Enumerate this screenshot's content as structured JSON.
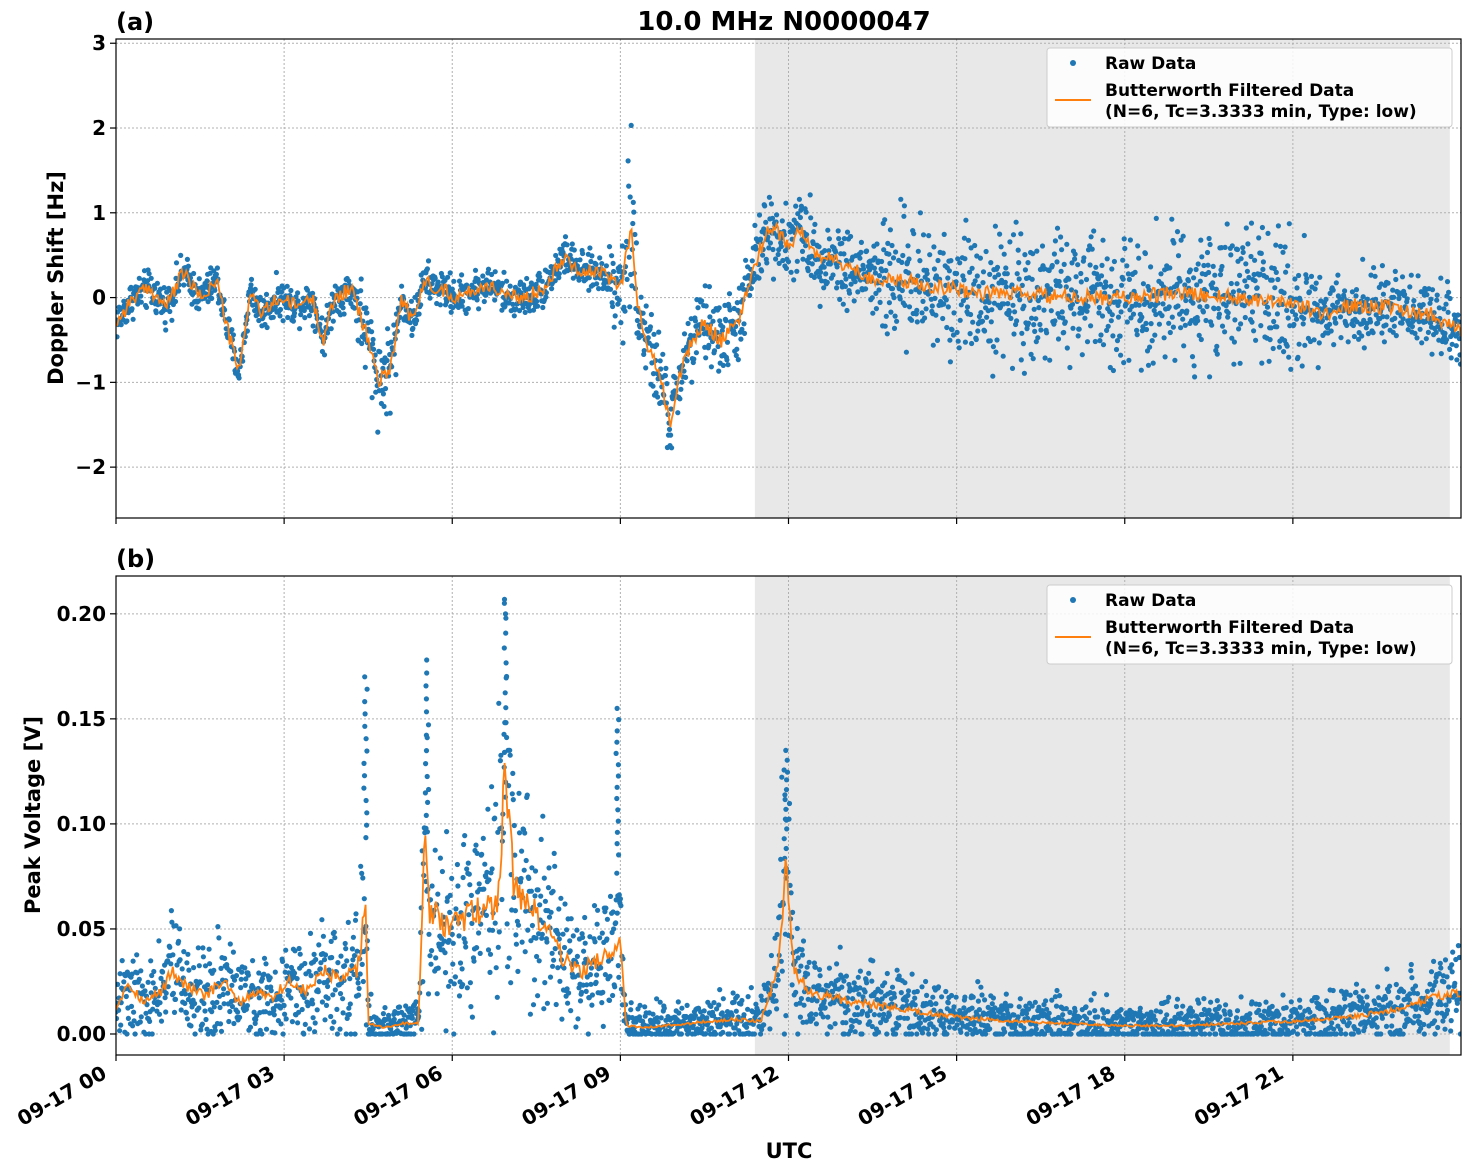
{
  "figure": {
    "title": "10.0 MHz N0000047",
    "xlabel": "UTC",
    "shaded_start_hour": 11.4,
    "shaded_end_hour": 23.8,
    "colors": {
      "raw": "#1f77b4",
      "filtered": "#ff7f0e",
      "shade": "#e8e8e8",
      "grid": "#b0b0b0"
    }
  },
  "chart_data": [
    {
      "type": "scatter",
      "panel_label": "(a)",
      "ylabel": "Doppler Shift [Hz]",
      "xlim": [
        "09-17 00",
        "09-17 24"
      ],
      "ylim": [
        -2.6,
        3.05
      ],
      "x_ticks": [
        "09-17 00",
        "09-17 03",
        "09-17 06",
        "09-17 09",
        "09-17 12",
        "09-17 15",
        "09-17 18",
        "09-17 21"
      ],
      "y_ticks": [
        {
          "value": -2,
          "label": "−2"
        },
        {
          "value": -1,
          "label": "−1"
        },
        {
          "value": 0,
          "label": "0"
        },
        {
          "value": 1,
          "label": "1"
        },
        {
          "value": 2,
          "label": "2"
        },
        {
          "value": 3,
          "label": "3"
        }
      ],
      "legend": {
        "raw": "Raw Data",
        "filtered_line1": "Butterworth Filtered Data",
        "filtered_line2": "(N=6, Tc=3.3333 min, Type: low)"
      },
      "series": [
        {
          "name": "Butterworth Filtered Data",
          "x_hours": [
            0,
            0.3,
            0.6,
            0.9,
            1.2,
            1.5,
            1.8,
            2.0,
            2.2,
            2.4,
            2.6,
            2.9,
            3.2,
            3.5,
            3.7,
            3.9,
            4.2,
            4.5,
            4.7,
            4.9,
            5.1,
            5.3,
            5.5,
            5.8,
            6.1,
            6.4,
            6.7,
            7.0,
            7.3,
            7.6,
            7.8,
            8.0,
            8.3,
            8.6,
            8.9,
            9.0,
            9.1,
            9.2,
            9.3,
            9.5,
            9.7,
            9.9,
            10.1,
            10.3,
            10.5,
            10.8,
            11.1,
            11.4,
            11.6,
            11.8,
            12.0,
            12.2,
            12.5,
            12.8,
            13.1,
            13.4,
            13.7,
            14.0,
            14.5,
            15.0,
            15.5,
            16.0,
            17.0,
            18.0,
            19.0,
            20.0,
            21.0,
            21.5,
            22.0,
            22.5,
            23.0,
            23.5,
            24.0
          ],
          "y": [
            -0.3,
            0.0,
            0.1,
            -0.1,
            0.3,
            0.0,
            0.2,
            -0.4,
            -0.9,
            0.1,
            -0.2,
            0.0,
            -0.1,
            0.0,
            -0.5,
            0.0,
            0.1,
            -0.5,
            -1.0,
            -0.8,
            0.0,
            -0.3,
            0.2,
            0.1,
            0.0,
            0.1,
            0.15,
            0.0,
            0.0,
            0.1,
            0.3,
            0.5,
            0.3,
            0.3,
            0.2,
            0.1,
            0.5,
            0.85,
            -0.1,
            -0.6,
            -0.9,
            -1.5,
            -0.8,
            -0.5,
            -0.3,
            -0.5,
            -0.3,
            0.4,
            0.75,
            0.8,
            0.6,
            0.8,
            0.5,
            0.45,
            0.35,
            0.25,
            0.2,
            0.2,
            0.15,
            0.1,
            0.05,
            0.05,
            0.0,
            0.0,
            0.05,
            0.0,
            -0.05,
            -0.2,
            -0.1,
            -0.1,
            -0.15,
            -0.2,
            -0.4
          ]
        }
      ]
    },
    {
      "type": "scatter",
      "panel_label": "(b)",
      "ylabel": "Peak Voltage [V]",
      "xlim": [
        "09-17 00",
        "09-17 24"
      ],
      "ylim": [
        -0.01,
        0.218
      ],
      "x_ticks": [
        "09-17 00",
        "09-17 03",
        "09-17 06",
        "09-17 09",
        "09-17 12",
        "09-17 15",
        "09-17 18",
        "09-17 21"
      ],
      "y_ticks": [
        {
          "value": 0.0,
          "label": "0.00"
        },
        {
          "value": 0.05,
          "label": "0.05"
        },
        {
          "value": 0.1,
          "label": "0.10"
        },
        {
          "value": 0.15,
          "label": "0.15"
        },
        {
          "value": 0.2,
          "label": "0.20"
        }
      ],
      "legend": {
        "raw": "Raw Data",
        "filtered_line1": "Butterworth Filtered Data",
        "filtered_line2": "(N=6, Tc=3.3333 min, Type: low)"
      },
      "series": [
        {
          "name": "Butterworth Filtered Data",
          "x_hours": [
            0,
            0.2,
            0.5,
            0.8,
            1.0,
            1.3,
            1.6,
            1.9,
            2.2,
            2.5,
            2.8,
            3.1,
            3.4,
            3.7,
            4.0,
            4.3,
            4.45,
            4.5,
            4.8,
            5.1,
            5.4,
            5.5,
            5.6,
            5.9,
            6.2,
            6.5,
            6.8,
            6.95,
            7.1,
            7.4,
            7.7,
            8.0,
            8.3,
            8.6,
            8.9,
            9.0,
            9.1,
            9.4,
            9.8,
            10.2,
            10.6,
            11.0,
            11.5,
            11.8,
            11.95,
            12.1,
            12.4,
            12.7,
            13.0,
            13.5,
            14.0,
            14.5,
            15.0,
            16.0,
            17.0,
            18.0,
            19.0,
            20.0,
            21.0,
            22.0,
            22.5,
            23.0,
            23.5,
            24.0
          ],
          "y": [
            0.012,
            0.025,
            0.015,
            0.02,
            0.03,
            0.022,
            0.018,
            0.025,
            0.015,
            0.02,
            0.018,
            0.025,
            0.02,
            0.03,
            0.025,
            0.03,
            0.06,
            0.005,
            0.003,
            0.005,
            0.005,
            0.09,
            0.06,
            0.05,
            0.055,
            0.06,
            0.06,
            0.13,
            0.07,
            0.06,
            0.05,
            0.035,
            0.03,
            0.035,
            0.04,
            0.05,
            0.004,
            0.003,
            0.004,
            0.005,
            0.006,
            0.007,
            0.006,
            0.03,
            0.08,
            0.03,
            0.02,
            0.018,
            0.016,
            0.014,
            0.012,
            0.01,
            0.008,
            0.006,
            0.005,
            0.004,
            0.004,
            0.005,
            0.006,
            0.008,
            0.01,
            0.012,
            0.018,
            0.02
          ]
        },
        {
          "name": "Raw Data",
          "x_hours": [
            4.45,
            5.55,
            6.95,
            8.95,
            11.95
          ],
          "y": [
            0.17,
            0.178,
            0.205,
            0.155,
            0.135
          ]
        }
      ]
    }
  ]
}
